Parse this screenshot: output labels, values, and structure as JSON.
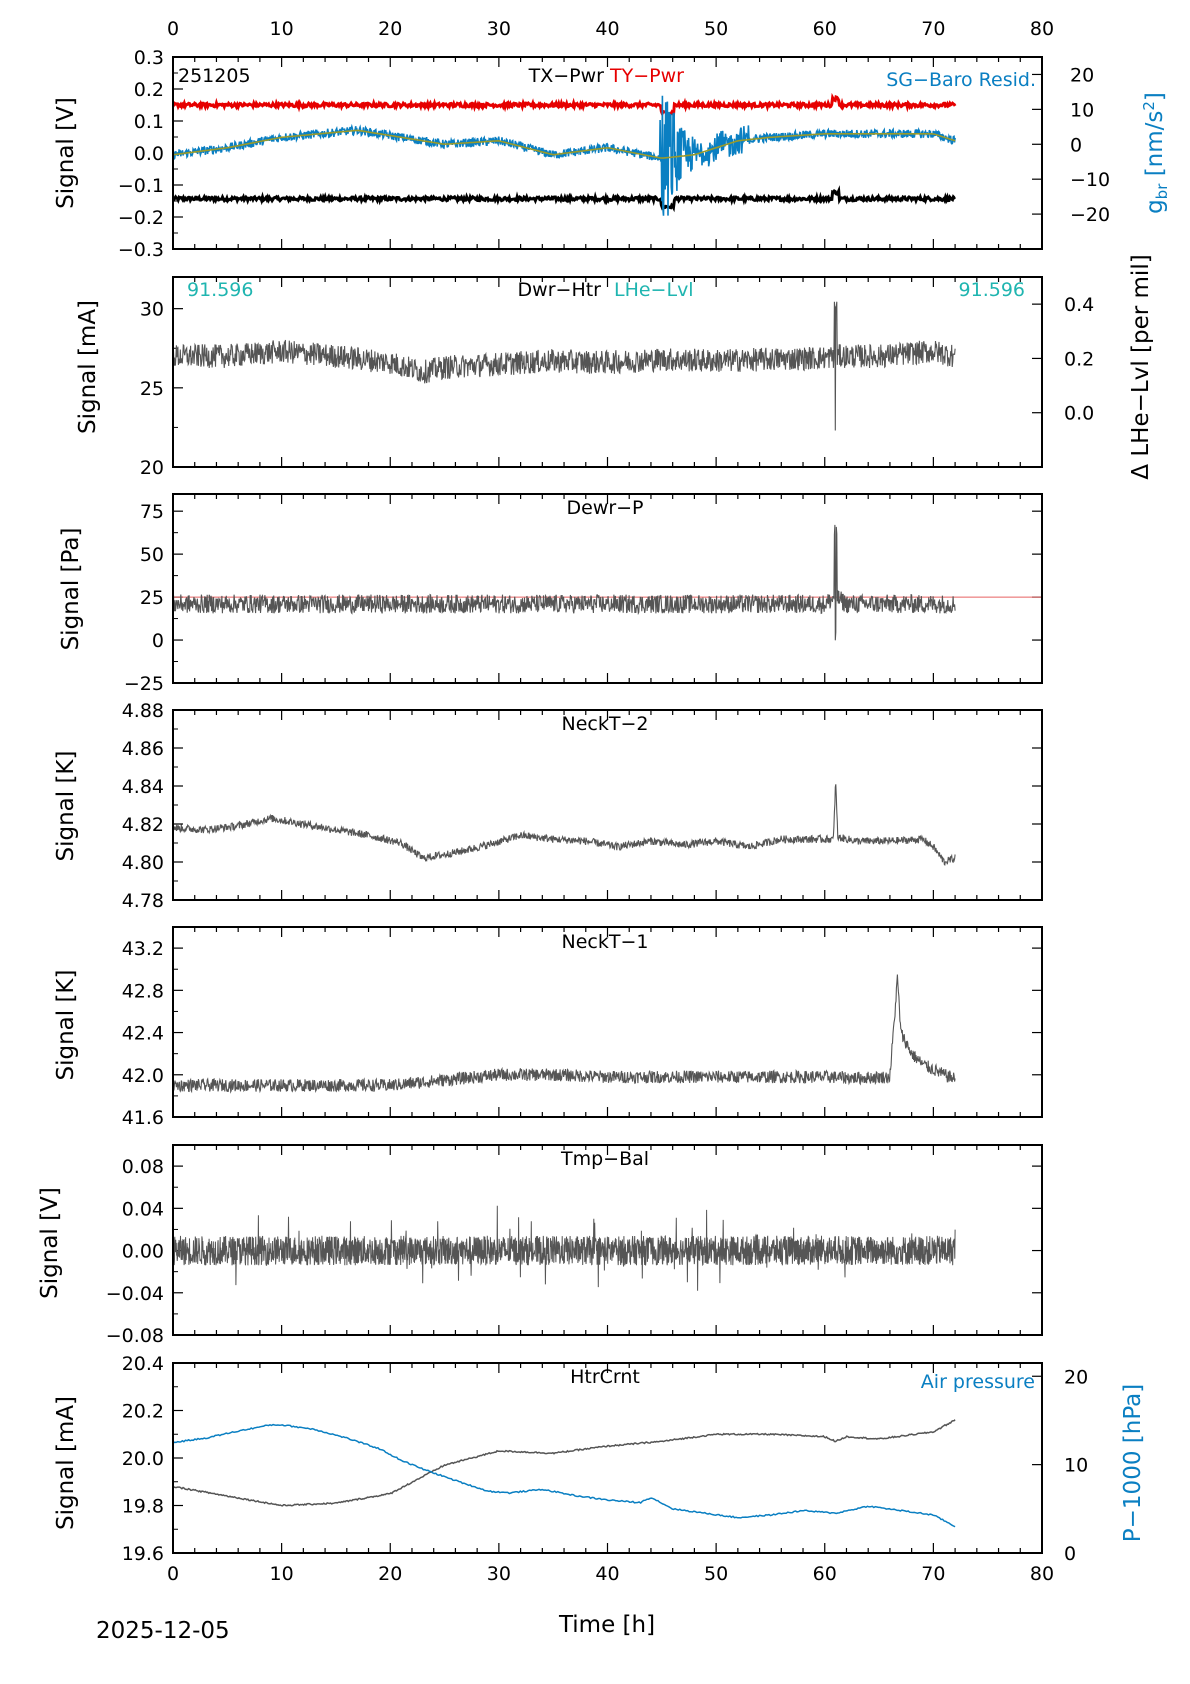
{
  "figure": {
    "date_label": "2025-12-05",
    "x_axis_label": "Time [h]",
    "xlim": [
      0,
      80
    ],
    "x_ticks": [
      0,
      10,
      20,
      30,
      40,
      50,
      60,
      70,
      80
    ]
  },
  "colors": {
    "main_trace": "#555555",
    "tx_pwr": "#000000",
    "ty_pwr": "#e60000",
    "sg_resid": "#0a7fc2",
    "sg_smooth": "#9a9a2a",
    "lhe_lvl": "#1fb5b0",
    "air_pressure": "#0a7fc2",
    "reference_line": "#e66060"
  },
  "chart_data": [
    {
      "id": "tx-ty-pwr",
      "type": "line",
      "annotation_left": "251205",
      "title_parts": [
        "TX−Pwr",
        "TY−Pwr"
      ],
      "right_label": "SG−Baro Resid.",
      "ylabel": "Signal [V]",
      "ylim": [
        -0.3,
        0.3
      ],
      "y_ticks": [
        "0.3",
        "0.2",
        "0.1",
        "0.0",
        "−0.1",
        "−0.2",
        "−0.3"
      ],
      "y_tick_values": [
        0.3,
        0.2,
        0.1,
        0.0,
        -0.1,
        -0.2,
        -0.3
      ],
      "y2label": "g_br [nm/s²]",
      "y2lim": [
        -30,
        25
      ],
      "y2_ticks": [
        "20",
        "10",
        "0",
        "−10",
        "−20"
      ],
      "y2_tick_values": [
        20,
        10,
        0,
        -10,
        -20
      ],
      "series": [
        {
          "name": "TX−Pwr",
          "axis": "left",
          "level": -0.143,
          "x_end": 72
        },
        {
          "name": "TY−Pwr",
          "axis": "left",
          "level": 0.15,
          "x_end": 72
        },
        {
          "name": "SG−Baro Resid.",
          "axis": "right",
          "x": [
            0,
            5,
            10,
            17,
            25,
            30,
            35,
            40,
            45,
            48,
            52,
            55,
            60,
            65,
            70,
            72
          ],
          "values": [
            -3,
            -1,
            2,
            4,
            0,
            1,
            -3,
            -1,
            -4,
            -3,
            1,
            2,
            3,
            3,
            3,
            1
          ]
        }
      ]
    },
    {
      "id": "dwr-htr",
      "type": "line",
      "title_parts": [
        "Dwr−Htr",
        "LHe−Lvl"
      ],
      "left_value": "91.596",
      "right_value": "91.596",
      "ylabel": "Signal [mA]",
      "ylim": [
        20,
        32
      ],
      "y_ticks": [
        "30",
        "25",
        "20"
      ],
      "y_tick_values": [
        30,
        25,
        20
      ],
      "y2label": "Δ LHe−Lvl [per mil]",
      "y2lim": [
        -0.2,
        0.5
      ],
      "y2_ticks": [
        "0.4",
        "0.2",
        "0.0"
      ],
      "y2_tick_values": [
        0.4,
        0.2,
        0.0
      ],
      "series": [
        {
          "name": "Dwr−Htr",
          "x": [
            0,
            5,
            10,
            15,
            20,
            23,
            25,
            30,
            35,
            40,
            45,
            50,
            55,
            60,
            61,
            65,
            70,
            72
          ],
          "values": [
            27.0,
            27.0,
            27.3,
            27.0,
            26.6,
            26.0,
            26.3,
            26.5,
            26.7,
            26.6,
            26.8,
            26.7,
            26.8,
            26.9,
            27.0,
            27.0,
            27.3,
            27.0
          ]
        }
      ]
    },
    {
      "id": "dewr-p",
      "type": "line",
      "title": "Dewr−P",
      "ylabel": "Signal [Pa]",
      "ylim": [
        -25,
        85
      ],
      "y_ticks": [
        "75",
        "50",
        "25",
        "0",
        "−25"
      ],
      "y_tick_values": [
        75,
        50,
        25,
        0,
        -25
      ],
      "reference_level": 25,
      "series": [
        {
          "name": "Dewr−P",
          "x": [
            0,
            10,
            20,
            30,
            40,
            50,
            60,
            61,
            62,
            70,
            72
          ],
          "values": [
            21,
            21,
            21,
            21,
            21,
            21,
            21,
            25,
            21,
            21,
            21
          ]
        }
      ]
    },
    {
      "id": "neckt-2",
      "type": "line",
      "title": "NeckT−2",
      "ylabel": "Signal [K]",
      "ylim": [
        4.78,
        4.88
      ],
      "y_ticks": [
        "4.88",
        "4.86",
        "4.84",
        "4.82",
        "4.80",
        "4.78"
      ],
      "y_tick_values": [
        4.88,
        4.86,
        4.84,
        4.82,
        4.8,
        4.78
      ],
      "series": [
        {
          "name": "NeckT−2",
          "x": [
            0,
            3,
            6,
            9,
            12,
            15,
            18,
            21,
            23,
            26,
            29,
            32,
            35,
            38,
            41,
            44,
            47,
            50,
            53,
            56,
            59,
            60.8,
            61,
            61.2,
            63,
            66,
            69,
            70,
            71,
            72
          ],
          "values": [
            4.818,
            4.817,
            4.819,
            4.823,
            4.82,
            4.817,
            4.814,
            4.81,
            4.802,
            4.805,
            4.809,
            4.814,
            4.812,
            4.811,
            4.808,
            4.811,
            4.809,
            4.811,
            4.808,
            4.812,
            4.812,
            4.812,
            4.843,
            4.813,
            4.811,
            4.811,
            4.812,
            4.808,
            4.8,
            4.802
          ]
        }
      ]
    },
    {
      "id": "neckt-1",
      "type": "line",
      "title": "NeckT−1",
      "ylabel": "Signal [K]",
      "ylim": [
        41.6,
        43.4
      ],
      "y_ticks": [
        "43.2",
        "42.8",
        "42.4",
        "42.0",
        "41.6"
      ],
      "y_tick_values": [
        43.2,
        42.8,
        42.4,
        42.0,
        41.6
      ],
      "series": [
        {
          "name": "NeckT−1",
          "x": [
            0,
            5,
            10,
            15,
            20,
            25,
            30,
            35,
            40,
            45,
            50,
            55,
            60,
            63,
            66,
            66.7,
            67,
            68,
            69,
            70,
            71,
            72
          ],
          "values": [
            41.9,
            41.9,
            41.9,
            41.9,
            41.9,
            41.95,
            42.0,
            42.0,
            41.98,
            41.98,
            41.98,
            41.98,
            41.98,
            41.97,
            41.98,
            42.92,
            42.4,
            42.2,
            42.1,
            42.05,
            42.0,
            41.96
          ]
        }
      ]
    },
    {
      "id": "tmp-bal",
      "type": "line",
      "title": "Tmp−Bal",
      "ylabel": "Signal [V]",
      "ylim": [
        -0.08,
        0.1
      ],
      "y_ticks": [
        "0.08",
        "0.04",
        "0.00",
        "−0.04",
        "−0.08"
      ],
      "y_tick_values": [
        0.08,
        0.04,
        0.0,
        -0.04,
        -0.08
      ],
      "series": [
        {
          "name": "Tmp−Bal",
          "x": [
            0,
            72
          ],
          "values": [
            0.0,
            0.0
          ]
        }
      ]
    },
    {
      "id": "htrcrnt",
      "type": "line",
      "title": "HtrCrnt",
      "right_label": "Air pressure",
      "ylabel": "Signal [mA]",
      "ylim": [
        19.6,
        20.4
      ],
      "y_ticks": [
        "20.4",
        "20.2",
        "20.0",
        "19.8",
        "19.6"
      ],
      "y_tick_values": [
        20.4,
        20.2,
        20.0,
        19.8,
        19.6
      ],
      "y2label": "P−1000 [hPa]",
      "y2lim": [
        0,
        21.5
      ],
      "y2_ticks": [
        "20",
        "10",
        "0"
      ],
      "y2_tick_values": [
        20,
        10,
        0
      ],
      "series": [
        {
          "name": "HtrCrnt",
          "axis": "left",
          "x": [
            0,
            5,
            10,
            15,
            20,
            25,
            30,
            35,
            40,
            45,
            50,
            55,
            60,
            61,
            62,
            65,
            70,
            72
          ],
          "values": [
            19.88,
            19.84,
            19.8,
            19.81,
            19.85,
            19.97,
            20.03,
            20.02,
            20.05,
            20.07,
            20.1,
            20.1,
            20.09,
            20.07,
            20.09,
            20.08,
            20.11,
            20.16
          ]
        },
        {
          "name": "Air pressure",
          "axis": "right",
          "x": [
            0,
            3,
            6,
            9,
            10,
            13,
            16,
            19,
            21,
            23,
            26,
            29,
            31,
            34,
            37,
            40,
            43,
            44,
            46,
            49,
            52,
            55,
            58,
            61,
            64,
            67,
            70,
            72
          ],
          "values": [
            12.5,
            13.0,
            13.8,
            14.5,
            14.5,
            14.0,
            13.0,
            11.8,
            10.5,
            9.5,
            8.2,
            7.0,
            6.8,
            7.2,
            6.5,
            6.0,
            5.7,
            6.3,
            5.0,
            4.5,
            4.0,
            4.3,
            4.8,
            4.5,
            5.3,
            4.8,
            4.3,
            3.0
          ]
        }
      ]
    }
  ]
}
